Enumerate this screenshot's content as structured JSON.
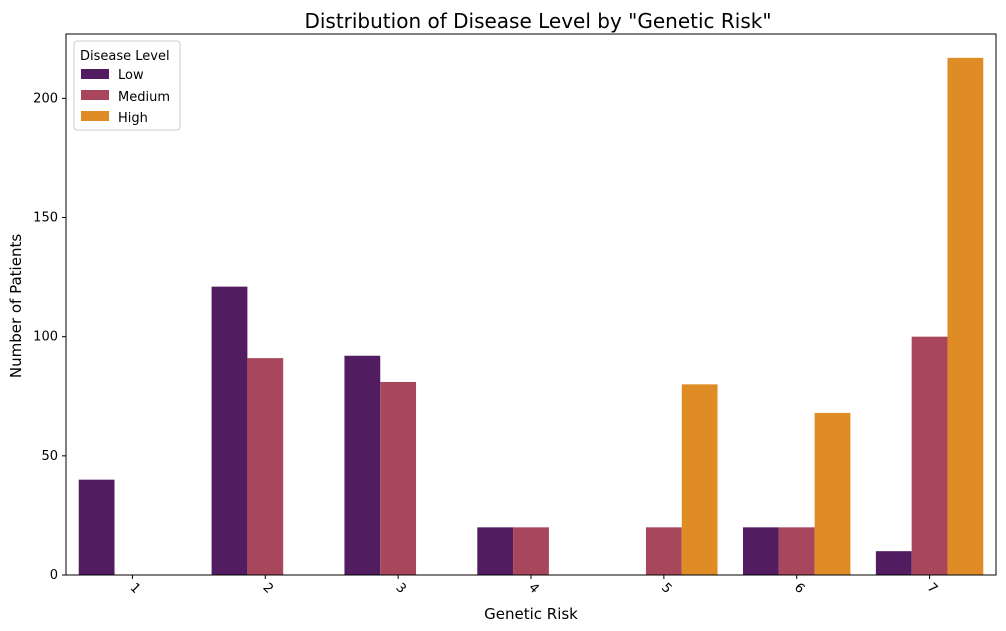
{
  "chart_data": {
    "type": "bar",
    "title": "Distribution of Disease Level by \"Genetic Risk\"",
    "xlabel": "Genetic Risk",
    "ylabel": "Number of Patients",
    "categories": [
      "1",
      "2",
      "3",
      "4",
      "5",
      "6",
      "7"
    ],
    "ylim": [
      0,
      227
    ],
    "yticks": [
      "0",
      "50",
      "100",
      "150",
      "200"
    ],
    "legend": {
      "title": "Disease Level",
      "placement": "top-left"
    },
    "grid": false,
    "series": [
      {
        "name": "Low",
        "color": "#511c60",
        "values": [
          40,
          121,
          92,
          20,
          0,
          20,
          10
        ]
      },
      {
        "name": "Medium",
        "color": "#a8465c",
        "values": [
          0,
          91,
          81,
          20,
          20,
          20,
          100
        ]
      },
      {
        "name": "High",
        "color": "#e08c26",
        "values": [
          0,
          0,
          0,
          0,
          80,
          68,
          217
        ]
      }
    ]
  }
}
